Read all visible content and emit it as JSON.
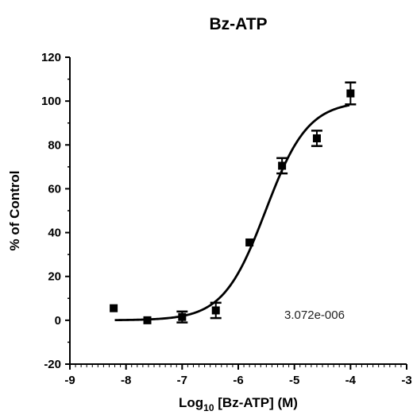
{
  "chart_data": {
    "type": "scatter",
    "title": "Bz-ATP",
    "xlabel_main": "Log",
    "xlabel_sub": "10",
    "xlabel_rest": " [Bz-ATP] (M)",
    "ylabel": "% of Control",
    "xlim": [
      -9,
      -3
    ],
    "ylim": [
      -20,
      120
    ],
    "x_ticks": [
      -9,
      -8,
      -7,
      -6,
      -5,
      -4,
      -3
    ],
    "y_ticks": [
      -20,
      0,
      20,
      40,
      60,
      80,
      100,
      120
    ],
    "points": [
      {
        "x": -8.22,
        "y": 5.5,
        "err": 0
      },
      {
        "x": -7.62,
        "y": 0,
        "err": 0
      },
      {
        "x": -7.0,
        "y": 1.5,
        "err": 2.5
      },
      {
        "x": -6.4,
        "y": 4.5,
        "err": 3.5
      },
      {
        "x": -5.8,
        "y": 35.5,
        "err": 0
      },
      {
        "x": -5.22,
        "y": 70.5,
        "err": 3.5
      },
      {
        "x": -4.6,
        "y": 83,
        "err": 3.5
      },
      {
        "x": -4.0,
        "y": 103.5,
        "err": 5
      }
    ],
    "fit": {
      "bottom": 0,
      "top": 100,
      "ec50": 3.072e-06,
      "hill": 1.15
    },
    "annotation": "3.072e-006"
  }
}
